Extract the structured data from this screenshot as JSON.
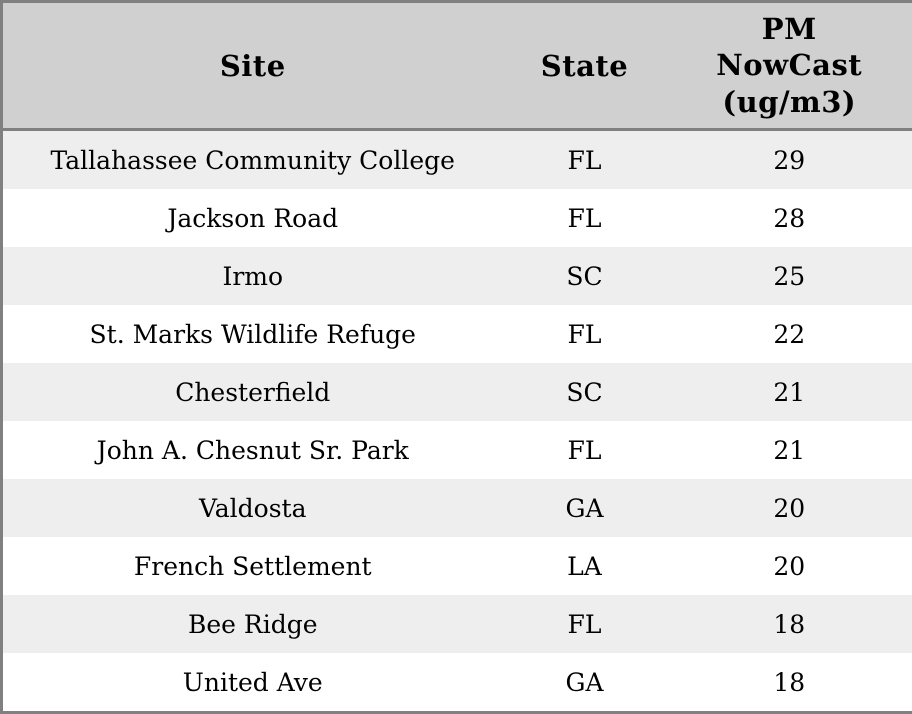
{
  "table": {
    "header": {
      "site": "Site",
      "state": "State",
      "pm_full": "PM NowCast (ug/m3)",
      "pm_lines": [
        "PM",
        "NowCast",
        "(ug/m3)"
      ]
    },
    "rows": [
      {
        "site": "Tallahassee Community College",
        "state": "FL",
        "pm": "29"
      },
      {
        "site": "Jackson Road",
        "state": "FL",
        "pm": "28"
      },
      {
        "site": "Irmo",
        "state": "SC",
        "pm": "25"
      },
      {
        "site": "St. Marks Wildlife Refuge",
        "state": "FL",
        "pm": "22"
      },
      {
        "site": "Chesterfield",
        "state": "SC",
        "pm": "21"
      },
      {
        "site": "John A. Chesnut Sr. Park",
        "state": "FL",
        "pm": "21"
      },
      {
        "site": "Valdosta",
        "state": "GA",
        "pm": "20"
      },
      {
        "site": "French Settlement",
        "state": "LA",
        "pm": "20"
      },
      {
        "site": "Bee Ridge",
        "state": "FL",
        "pm": "18"
      },
      {
        "site": "United Ave",
        "state": "GA",
        "pm": "18"
      }
    ],
    "colors": {
      "header_bg": "#d0d0d0",
      "row_odd_bg": "#eeeeee",
      "row_even_bg": "#ffffff",
      "border": "#808080",
      "text": "#000000"
    }
  },
  "chart_data": {
    "type": "table",
    "title": "",
    "columns": [
      "Site",
      "State",
      "PM NowCast (ug/m3)"
    ],
    "rows": [
      [
        "Tallahassee Community College",
        "FL",
        29
      ],
      [
        "Jackson Road",
        "FL",
        28
      ],
      [
        "Irmo",
        "SC",
        25
      ],
      [
        "St. Marks Wildlife Refuge",
        "FL",
        22
      ],
      [
        "Chesterfield",
        "SC",
        21
      ],
      [
        "John A. Chesnut Sr. Park",
        "FL",
        21
      ],
      [
        "Valdosta",
        "GA",
        20
      ],
      [
        "French Settlement",
        "LA",
        20
      ],
      [
        "Bee Ridge",
        "FL",
        18
      ],
      [
        "United Ave",
        "GA",
        18
      ]
    ]
  }
}
